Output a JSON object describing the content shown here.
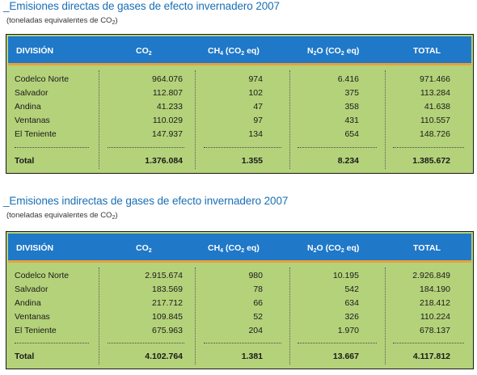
{
  "table1": {
    "title": "_Emisiones directas de gases de efecto invernadero 2007",
    "subtitle_pre": "(toneladas equivalentes de CO",
    "subtitle_sub": "2",
    "subtitle_post": ")",
    "headers": {
      "division": "DIVISIÓN",
      "co2_pre": "CO",
      "co2_sub": "2",
      "ch4_pre": "CH",
      "ch4_sub": "4",
      "ch4_mid": " (CO",
      "ch4_sub2": "2",
      "ch4_post": " eq)",
      "n2o_pre": "N",
      "n2o_sub": "2",
      "n2o_mid": "O (CO",
      "n2o_sub2": "2",
      "n2o_post": " eq)",
      "total": "TOTAL"
    },
    "rows": [
      {
        "division": "Codelco Norte",
        "co2": "964.076",
        "ch4": "974",
        "n2o": "6.416",
        "total": "971.466"
      },
      {
        "division": "Salvador",
        "co2": "112.807",
        "ch4": "102",
        "n2o": "375",
        "total": "113.284"
      },
      {
        "division": "Andina",
        "co2": "41.233",
        "ch4": "47",
        "n2o": "358",
        "total": "41.638"
      },
      {
        "division": "Ventanas",
        "co2": "110.029",
        "ch4": "97",
        "n2o": "431",
        "total": "110.557"
      },
      {
        "division": "El Teniente",
        "co2": "147.937",
        "ch4": "134",
        "n2o": "654",
        "total": "148.726"
      }
    ],
    "totals": {
      "division": "Total",
      "co2": "1.376.084",
      "ch4": "1.355",
      "n2o": "8.234",
      "total": "1.385.672"
    }
  },
  "table2": {
    "title": "_Emisiones indirectas de gases de efecto invernadero 2007",
    "subtitle_pre": "(toneladas equivalentes de CO",
    "subtitle_sub": "2",
    "subtitle_post": ")",
    "headers": {
      "division": "DIVISIÓN",
      "co2_pre": "CO",
      "co2_sub": "2",
      "ch4_pre": "CH",
      "ch4_sub": "4",
      "ch4_mid": " (CO",
      "ch4_sub2": "2",
      "ch4_post": " eq)",
      "n2o_pre": "N",
      "n2o_sub": "2",
      "n2o_mid": "O (CO",
      "n2o_sub2": "2",
      "n2o_post": " eq)",
      "total": "TOTAL"
    },
    "rows": [
      {
        "division": "Codelco Norte",
        "co2": "2.915.674",
        "ch4": "980",
        "n2o": "10.195",
        "total": "2.926.849"
      },
      {
        "division": "Salvador",
        "co2": "183.569",
        "ch4": "78",
        "n2o": "542",
        "total": "184.190"
      },
      {
        "division": "Andina",
        "co2": "217.712",
        "ch4": "66",
        "n2o": "634",
        "total": "218.412"
      },
      {
        "division": "Ventanas",
        "co2": "109.845",
        "ch4": "52",
        "n2o": "326",
        "total": "110.224"
      },
      {
        "division": "El Teniente",
        "co2": "675.963",
        "ch4": "204",
        "n2o": "1.970",
        "total": "678.137"
      }
    ],
    "totals": {
      "division": "Total",
      "co2": "4.102.764",
      "ch4": "1.381",
      "n2o": "13.667",
      "total": "4.117.812"
    }
  },
  "colors": {
    "title": "#1a6fb5",
    "header_bg": "#1f78c8",
    "header_underline": "#e8a13a",
    "table_bg": "#b4d27a"
  }
}
